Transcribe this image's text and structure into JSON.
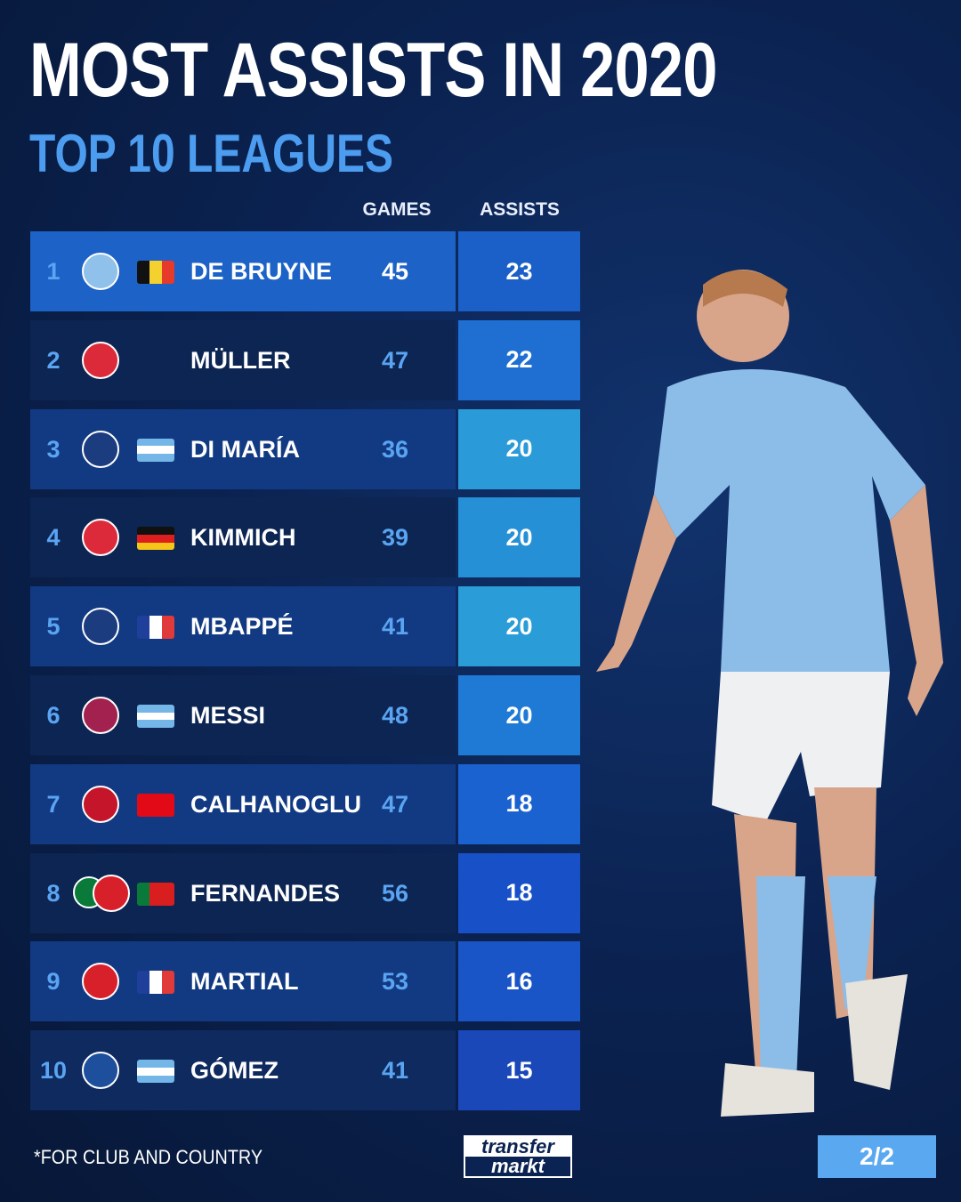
{
  "title": "MOST ASSISTS IN 2020",
  "subtitle": "TOP 10 LEAGUES",
  "footnote": "*FOR CLUB AND COUNTRY",
  "logo": {
    "line1": "transfer",
    "line2": "markt"
  },
  "page_indicator": "2/2",
  "chart_data": {
    "type": "table",
    "columns": [
      "GAMES",
      "ASSISTS"
    ],
    "rows": [
      {
        "rank": "1",
        "club": "Manchester City",
        "flag": "Belgium",
        "name": "DE BRUYNE",
        "games": 45,
        "assists": 23
      },
      {
        "rank": "2",
        "club": "Bayern Munich",
        "flag": "",
        "name": "MÜLLER",
        "games": 47,
        "assists": 22
      },
      {
        "rank": "3",
        "club": "Paris Saint-Germain",
        "flag": "Argentina",
        "name": "DI MARÍA",
        "games": 36,
        "assists": 20
      },
      {
        "rank": "4",
        "club": "Bayern Munich",
        "flag": "Germany",
        "name": "KIMMICH",
        "games": 39,
        "assists": 20
      },
      {
        "rank": "5",
        "club": "Paris Saint-Germain",
        "flag": "France",
        "name": "MBAPPÉ",
        "games": 41,
        "assists": 20
      },
      {
        "rank": "6",
        "club": "FC Barcelona",
        "flag": "Argentina",
        "name": "MESSI",
        "games": 48,
        "assists": 20
      },
      {
        "rank": "7",
        "club": "AC Milan",
        "flag": "Turkey",
        "name": "CALHANOGLU",
        "games": 47,
        "assists": 18
      },
      {
        "rank": "8",
        "club": "Sporting CP / Manchester United",
        "flag": "Portugal",
        "name": "FERNANDES",
        "games": 56,
        "assists": 18
      },
      {
        "rank": "9",
        "club": "Manchester United",
        "flag": "France",
        "name": "MARTIAL",
        "games": 53,
        "assists": 16
      },
      {
        "rank": "10",
        "club": "Atalanta",
        "flag": "Argentina",
        "name": "GÓMEZ",
        "games": 41,
        "assists": 15
      }
    ]
  }
}
